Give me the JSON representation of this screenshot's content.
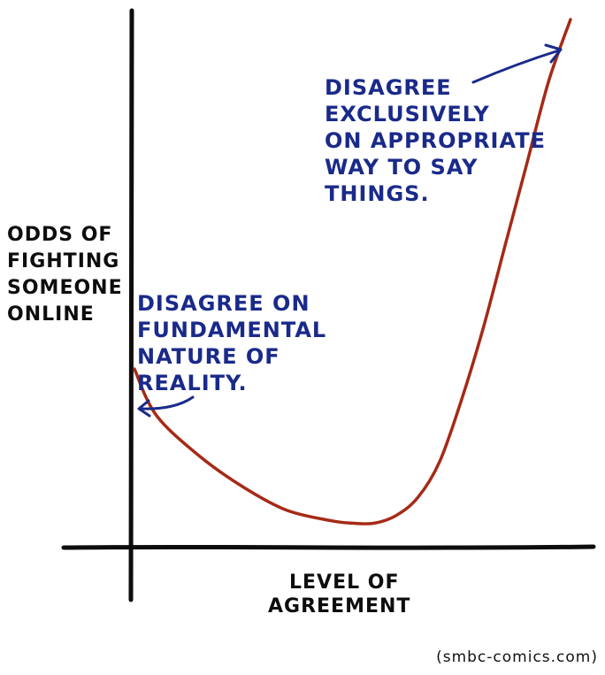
{
  "chart_data": {
    "type": "line",
    "xlabel": [
      "LEVEL OF",
      "AGREEMENT"
    ],
    "ylabel": [
      "ODDS OF",
      "FIGHTING",
      "SOMEONE",
      "ONLINE"
    ],
    "grid": false,
    "series": [
      {
        "color": "#a52a16",
        "x": [
          0,
          0.05,
          0.15,
          0.25,
          0.35,
          0.45,
          0.5,
          0.55,
          0.6,
          0.65,
          0.7,
          0.75,
          0.8,
          0.85,
          0.9,
          0.95,
          1.0
        ],
        "y": [
          0.32,
          0.23,
          0.15,
          0.09,
          0.045,
          0.025,
          0.02,
          0.02,
          0.035,
          0.07,
          0.14,
          0.26,
          0.4,
          0.56,
          0.72,
          0.88,
          1.0
        ]
      }
    ],
    "annotations": [
      {
        "lines": [
          "DISAGREE ON",
          "FUNDAMENTAL",
          "NATURE  OF",
          "REALITY."
        ],
        "points_to": [
          0,
          0.32
        ]
      },
      {
        "lines": [
          "DISAGREE",
          "EXCLUSIVELY",
          "ON APPROPRIATE",
          "WAY TO SAY",
          "THINGS."
        ],
        "points_to": [
          1.0,
          1.0
        ]
      }
    ]
  },
  "credit": "(smbc-comics.com)",
  "colors": {
    "curve": "#a52a16",
    "annotation": "#1a2a8a",
    "axis": "#0d0d0d"
  }
}
